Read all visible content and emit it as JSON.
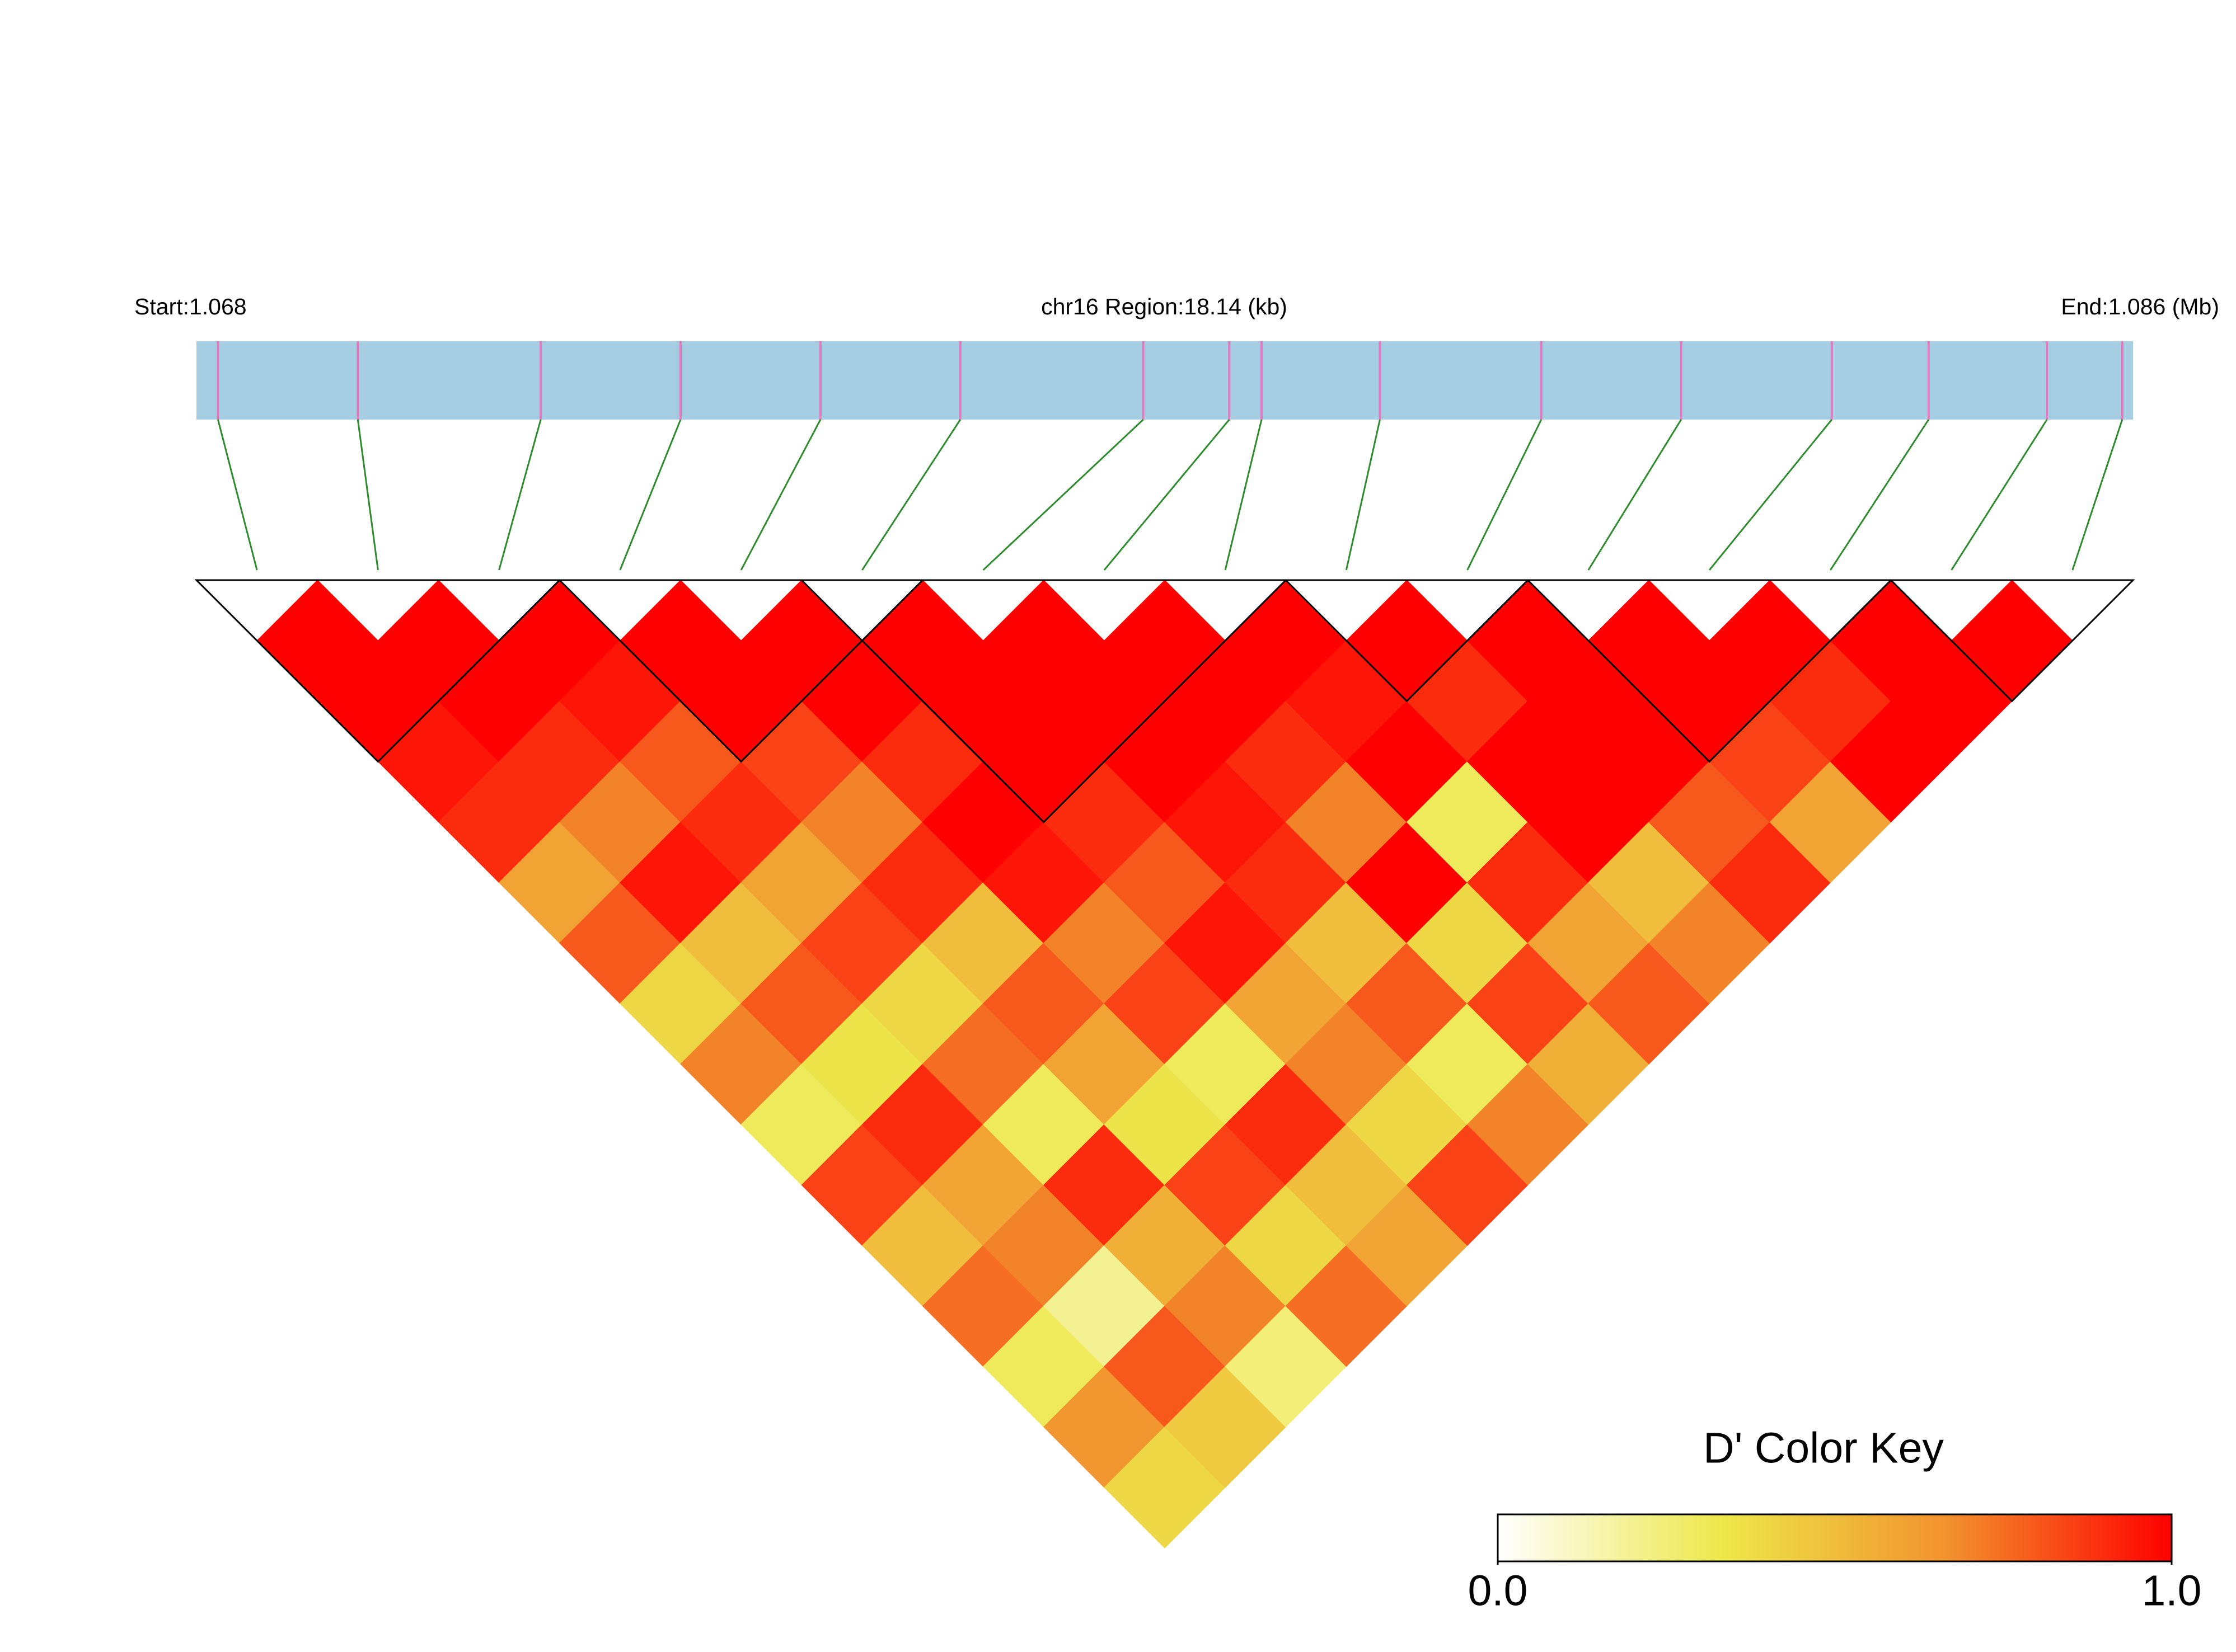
{
  "chart_data": {
    "type": "ldheatmap",
    "start_label": "Start:1.068",
    "region_label": "chr16 Region:18.14 (kb)",
    "end_label": "End:1.086 (Mb)",
    "xlim": [
      1.068,
      1.086
    ],
    "snp_positions": [
      1.0682,
      1.0695,
      1.0712,
      1.0725,
      1.0738,
      1.0751,
      1.0768,
      1.0776,
      1.0779,
      1.079,
      1.0805,
      1.0818,
      1.0832,
      1.0841,
      1.0852,
      1.0859
    ],
    "dprime": [
      [
        1,
        1,
        0.95,
        0.9,
        0.6,
        0.8,
        0.4,
        0.7,
        0.3,
        0.85,
        0.5,
        0.75,
        0.3,
        0.65,
        0.4
      ],
      [
        1,
        1,
        0.9,
        0.7,
        0.95,
        0.5,
        0.8,
        0.35,
        0.9,
        0.6,
        0.7,
        0.2,
        0.8,
        0.45
      ],
      [
        1,
        0.95,
        0.8,
        0.9,
        0.6,
        0.85,
        0.4,
        0.75,
        0.3,
        0.9,
        0.55,
        0.7,
        0.25
      ],
      [
        1,
        1,
        0.85,
        0.7,
        0.9,
        0.5,
        0.8,
        0.6,
        0.35,
        0.85,
        0.4,
        0.75
      ],
      [
        1,
        1,
        0.9,
        1,
        0.95,
        0.7,
        0.85,
        0.3,
        0.9,
        0.5,
        0.6
      ],
      [
        1,
        1,
        1,
        0.9,
        0.8,
        0.95,
        0.6,
        0.7,
        0.4,
        0.85
      ],
      [
        1,
        1,
        1,
        0.95,
        0.9,
        0.5,
        0.8,
        0.3,
        0.7
      ],
      [
        1,
        1,
        0.9,
        0.7,
        1,
        0.4,
        0.85,
        0.55
      ],
      [
        1,
        0.95,
        1,
        0.3,
        0.9,
        0.6,
        0.8
      ],
      [
        1,
        0.9,
        1,
        1,
        0.5,
        0.7
      ],
      [
        1,
        1,
        1,
        0.8,
        0.9
      ],
      [
        1,
        1,
        0.85,
        0.6
      ],
      [
        1,
        0.9,
        1
      ],
      [
        1,
        1
      ],
      [
        1
      ]
    ],
    "blocks": [
      [
        0,
        2
      ],
      [
        3,
        5
      ],
      [
        5,
        8
      ],
      [
        9,
        10
      ],
      [
        11,
        13
      ],
      [
        14,
        15
      ]
    ],
    "colors": [
      "#ffffff",
      "#ede84a",
      "#f2922e",
      "#ff0000"
    ],
    "key_title": "D' Color Key",
    "key_lim": [
      0,
      1
    ],
    "key_ticks": [
      {
        "value": 0,
        "label": "0.0"
      },
      {
        "value": 1,
        "label": "1.0"
      }
    ]
  }
}
